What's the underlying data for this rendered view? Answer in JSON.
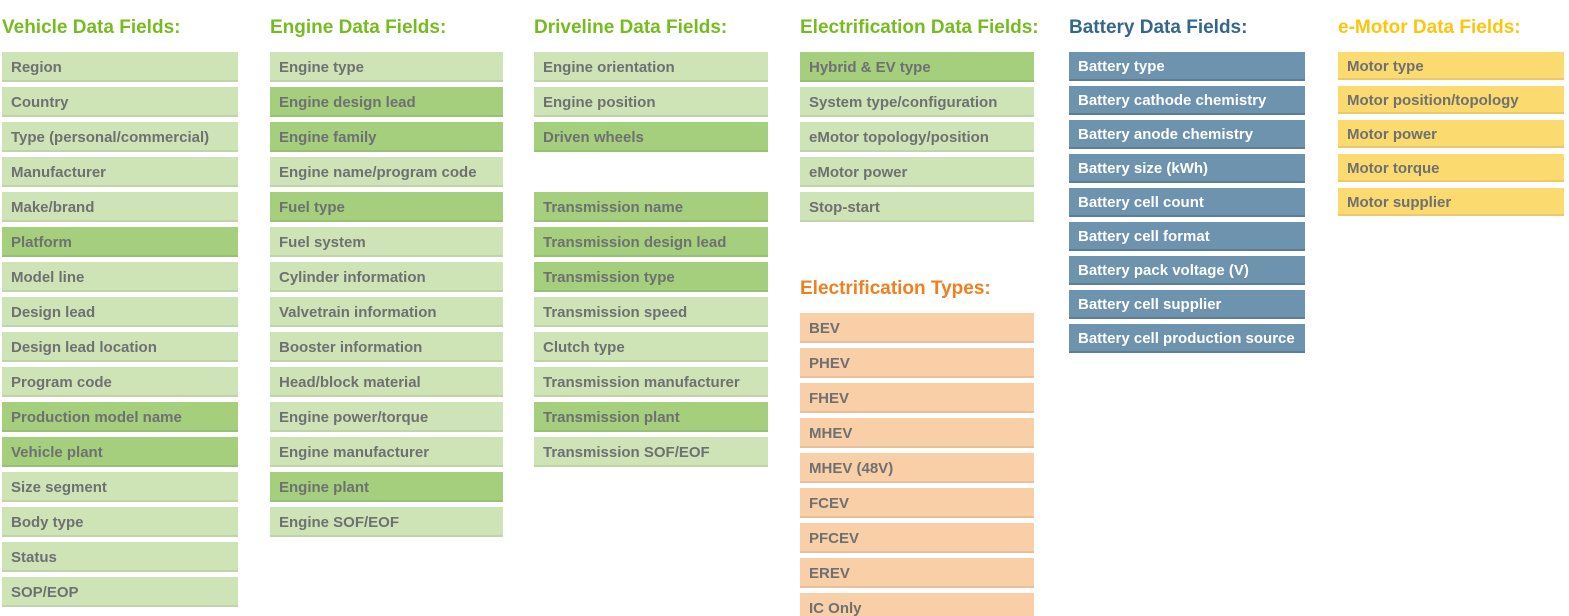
{
  "columns": [
    {
      "name": "vehicle",
      "sections": [
        {
          "title": "Vehicle Data Fields:",
          "title_color": "#76bc21",
          "item_bg": "#cfe4b6",
          "highlight_bg": "#a5ce7d",
          "item_text": "#6e7072",
          "items": [
            {
              "label": "Region",
              "highlight": false
            },
            {
              "label": "Country",
              "highlight": false
            },
            {
              "label": "Type (personal/commercial)",
              "highlight": false
            },
            {
              "label": "Manufacturer",
              "highlight": false
            },
            {
              "label": "Make/brand",
              "highlight": false
            },
            {
              "label": "Platform",
              "highlight": true
            },
            {
              "label": "Model line",
              "highlight": false
            },
            {
              "label": "Design lead",
              "highlight": false
            },
            {
              "label": "Design lead location",
              "highlight": false
            },
            {
              "label": "Program code",
              "highlight": false
            },
            {
              "label": "Production model name",
              "highlight": true
            },
            {
              "label": "Vehicle plant",
              "highlight": true
            },
            {
              "label": "Size segment",
              "highlight": false
            },
            {
              "label": "Body type",
              "highlight": false
            },
            {
              "label": "Status",
              "highlight": false
            },
            {
              "label": "SOP/EOP",
              "highlight": false
            }
          ]
        }
      ]
    },
    {
      "name": "engine",
      "sections": [
        {
          "title": "Engine Data Fields:",
          "title_color": "#76bc21",
          "item_bg": "#cfe4b6",
          "highlight_bg": "#a5ce7d",
          "item_text": "#6e7072",
          "items": [
            {
              "label": "Engine type",
              "highlight": false
            },
            {
              "label": "Engine design lead",
              "highlight": true
            },
            {
              "label": "Engine family",
              "highlight": true
            },
            {
              "label": "Engine name/program code",
              "highlight": false
            },
            {
              "label": "Fuel type",
              "highlight": true
            },
            {
              "label": "Fuel system",
              "highlight": false
            },
            {
              "label": "Cylinder information",
              "highlight": false
            },
            {
              "label": "Valvetrain information",
              "highlight": false
            },
            {
              "label": "Booster information",
              "highlight": false
            },
            {
              "label": "Head/block material",
              "highlight": false
            },
            {
              "label": "Engine power/torque",
              "highlight": false
            },
            {
              "label": "Engine manufacturer",
              "highlight": false
            },
            {
              "label": "Engine plant",
              "highlight": true
            },
            {
              "label": "Engine SOF/EOF",
              "highlight": false
            }
          ]
        }
      ]
    },
    {
      "name": "driveline",
      "sections": [
        {
          "title": "Driveline Data Fields:",
          "title_color": "#76bc21",
          "item_bg": "#cfe4b6",
          "highlight_bg": "#a5ce7d",
          "item_text": "#6e7072",
          "items": [
            {
              "label": "Engine orientation",
              "highlight": false
            },
            {
              "label": "Engine position",
              "highlight": false
            },
            {
              "label": "Driven wheels",
              "highlight": true
            },
            {
              "spacer": true
            },
            {
              "label": "Transmission name",
              "highlight": true
            },
            {
              "label": "Transmission design lead",
              "highlight": true
            },
            {
              "label": "Transmission type",
              "highlight": true
            },
            {
              "label": "Transmission speed",
              "highlight": false
            },
            {
              "label": "Clutch type",
              "highlight": false
            },
            {
              "label": "Transmission manufacturer",
              "highlight": false
            },
            {
              "label": "Transmission plant",
              "highlight": true
            },
            {
              "label": "Transmission SOF/EOF",
              "highlight": false
            }
          ]
        }
      ]
    },
    {
      "name": "electrification",
      "sections": [
        {
          "title": "Electrification Data Fields:",
          "title_color": "#76bc21",
          "item_bg": "#cfe4b6",
          "highlight_bg": "#a5ce7d",
          "item_text": "#6e7072",
          "items": [
            {
              "label": "Hybrid & EV type",
              "highlight": true
            },
            {
              "label": "System type/configuration",
              "highlight": false
            },
            {
              "label": "eMotor topology/position",
              "highlight": false
            },
            {
              "label": "eMotor power",
              "highlight": false
            },
            {
              "label": "Stop-start",
              "highlight": false
            }
          ]
        },
        {
          "title": "Electrification Types:",
          "title_color": "#f0801f",
          "item_bg": "#f8cfa6",
          "highlight_bg": "#f8cfa6",
          "item_text": "#6e7072",
          "items": [
            {
              "label": "BEV",
              "highlight": false
            },
            {
              "label": "PHEV",
              "highlight": false
            },
            {
              "label": "FHEV",
              "highlight": false
            },
            {
              "label": "MHEV",
              "highlight": false
            },
            {
              "label": "MHEV (48V)",
              "highlight": false
            },
            {
              "label": "FCEV",
              "highlight": false
            },
            {
              "label": "PFCEV",
              "highlight": false
            },
            {
              "label": "EREV",
              "highlight": false
            },
            {
              "label": "IC Only",
              "highlight": false
            }
          ]
        }
      ]
    },
    {
      "name": "battery",
      "sections": [
        {
          "title": "Battery Data Fields:",
          "title_color": "#33678b",
          "item_bg": "#6e93ae",
          "highlight_bg": "#6e93ae",
          "item_text": "#ffffff",
          "items": [
            {
              "label": "Battery type",
              "highlight": false
            },
            {
              "label": "Battery cathode chemistry",
              "highlight": false
            },
            {
              "label": "Battery anode chemistry",
              "highlight": false
            },
            {
              "label": "Battery size (kWh)",
              "highlight": false
            },
            {
              "label": "Battery cell count",
              "highlight": false
            },
            {
              "label": "Battery cell format",
              "highlight": false
            },
            {
              "label": "Battery pack voltage (V)",
              "highlight": false
            },
            {
              "label": "Battery cell supplier",
              "highlight": false
            },
            {
              "label": "Battery cell production source",
              "highlight": false
            }
          ]
        }
      ]
    },
    {
      "name": "emotor",
      "sections": [
        {
          "title": "e-Motor Data Fields:",
          "title_color": "#fcc60f",
          "item_bg": "#fbda70",
          "highlight_bg": "#fbda70",
          "item_text": "#6e7072",
          "items": [
            {
              "label": "Motor type",
              "highlight": false
            },
            {
              "label": "Motor position/topology",
              "highlight": false
            },
            {
              "label": "Motor power",
              "highlight": false
            },
            {
              "label": "Motor torque",
              "highlight": false
            },
            {
              "label": "Motor supplier",
              "highlight": false
            }
          ]
        }
      ]
    }
  ]
}
